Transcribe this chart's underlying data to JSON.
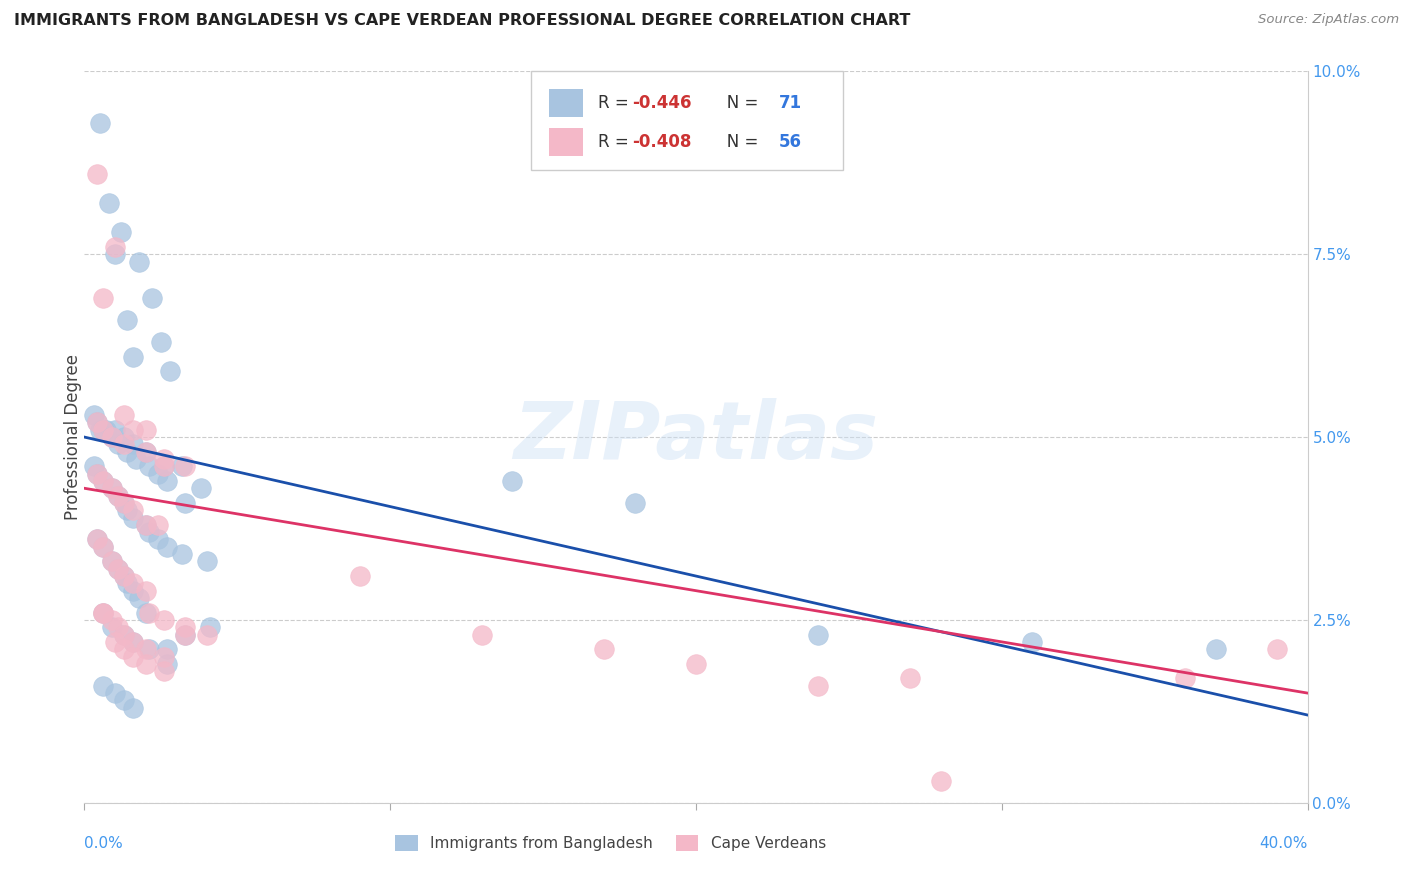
{
  "title": "IMMIGRANTS FROM BANGLADESH VS CAPE VERDEAN PROFESSIONAL DEGREE CORRELATION CHART",
  "source": "Source: ZipAtlas.com",
  "ylabel": "Professional Degree",
  "legend_blue_label": "Immigrants from Bangladesh",
  "legend_pink_label": "Cape Verdeans",
  "blue_color": "#a8c4e0",
  "pink_color": "#f4b8c8",
  "blue_line_color": "#1a4faa",
  "pink_line_color": "#dd3366",
  "watermark": "ZIPatlas",
  "blue_scatter_x": [
    0.5,
    0.8,
    1.2,
    1.0,
    1.8,
    2.2,
    1.4,
    1.6,
    2.5,
    2.8,
    0.5,
    0.7,
    1.0,
    1.3,
    1.6,
    2.0,
    2.6,
    3.2,
    0.3,
    0.4,
    0.6,
    0.9,
    1.1,
    1.4,
    1.7,
    2.1,
    2.4,
    2.7,
    3.3,
    3.8,
    0.3,
    0.4,
    0.6,
    0.9,
    1.1,
    1.3,
    1.4,
    1.6,
    2.0,
    2.1,
    2.4,
    2.7,
    3.2,
    4.0,
    0.4,
    0.6,
    0.9,
    1.1,
    1.3,
    1.4,
    1.6,
    1.8,
    2.0,
    2.7,
    3.3,
    4.1,
    0.6,
    0.9,
    1.3,
    1.6,
    2.1,
    2.7,
    0.6,
    1.0,
    1.3,
    1.6,
    14.0,
    18.0,
    24.0,
    31.0,
    37.0
  ],
  "blue_scatter_y": [
    9.3,
    8.2,
    7.8,
    7.5,
    7.4,
    6.9,
    6.6,
    6.1,
    6.3,
    5.9,
    5.1,
    5.1,
    5.1,
    5.0,
    4.9,
    4.8,
    4.6,
    4.6,
    5.3,
    5.2,
    5.1,
    5.0,
    4.9,
    4.8,
    4.7,
    4.6,
    4.5,
    4.4,
    4.1,
    4.3,
    4.6,
    4.5,
    4.4,
    4.3,
    4.2,
    4.1,
    4.0,
    3.9,
    3.8,
    3.7,
    3.6,
    3.5,
    3.4,
    3.3,
    3.6,
    3.5,
    3.3,
    3.2,
    3.1,
    3.0,
    2.9,
    2.8,
    2.6,
    2.1,
    2.3,
    2.4,
    2.6,
    2.4,
    2.3,
    2.2,
    2.1,
    1.9,
    1.6,
    1.5,
    1.4,
    1.3,
    4.4,
    4.1,
    2.3,
    2.2,
    2.1
  ],
  "pink_scatter_x": [
    0.4,
    0.6,
    1.0,
    1.3,
    2.0,
    0.4,
    0.6,
    0.9,
    1.3,
    1.6,
    2.0,
    2.6,
    3.3,
    0.4,
    0.6,
    0.9,
    1.1,
    1.3,
    1.6,
    2.0,
    2.4,
    2.6,
    0.4,
    0.6,
    0.9,
    1.1,
    1.3,
    1.6,
    2.0,
    2.1,
    2.6,
    3.3,
    4.0,
    0.6,
    0.9,
    1.1,
    1.3,
    1.6,
    2.0,
    2.6,
    3.3,
    0.6,
    1.0,
    1.3,
    1.6,
    2.0,
    2.6,
    9.0,
    13.0,
    17.0,
    20.0,
    24.0,
    27.0,
    28.0,
    36.0,
    39.0
  ],
  "pink_scatter_y": [
    8.6,
    6.9,
    7.6,
    5.3,
    5.1,
    5.2,
    5.1,
    5.0,
    4.9,
    5.1,
    4.8,
    4.7,
    4.6,
    4.5,
    4.4,
    4.3,
    4.2,
    4.1,
    4.0,
    3.8,
    3.8,
    4.6,
    3.6,
    3.5,
    3.3,
    3.2,
    3.1,
    3.0,
    2.9,
    2.6,
    2.5,
    2.4,
    2.3,
    2.6,
    2.5,
    2.4,
    2.3,
    2.2,
    2.1,
    2.0,
    2.3,
    2.6,
    2.2,
    2.1,
    2.0,
    1.9,
    1.8,
    3.1,
    2.3,
    2.1,
    1.9,
    1.6,
    1.7,
    0.3,
    1.7,
    2.1
  ],
  "blue_line_x": [
    0.0,
    40.0
  ],
  "blue_line_y": [
    5.0,
    1.2
  ],
  "pink_line_x": [
    0.0,
    40.0
  ],
  "pink_line_y": [
    4.3,
    1.5
  ],
  "xmin": 0.0,
  "xmax": 40.0,
  "ymin": 0.0,
  "ymax": 10.0,
  "xtick_positions": [
    0,
    10,
    20,
    30,
    40
  ],
  "ytick_positions": [
    0.0,
    2.5,
    5.0,
    7.5,
    10.0
  ],
  "ytick_labels": [
    "0.0%",
    "2.5%",
    "5.0%",
    "7.5%",
    "10.0%"
  ]
}
